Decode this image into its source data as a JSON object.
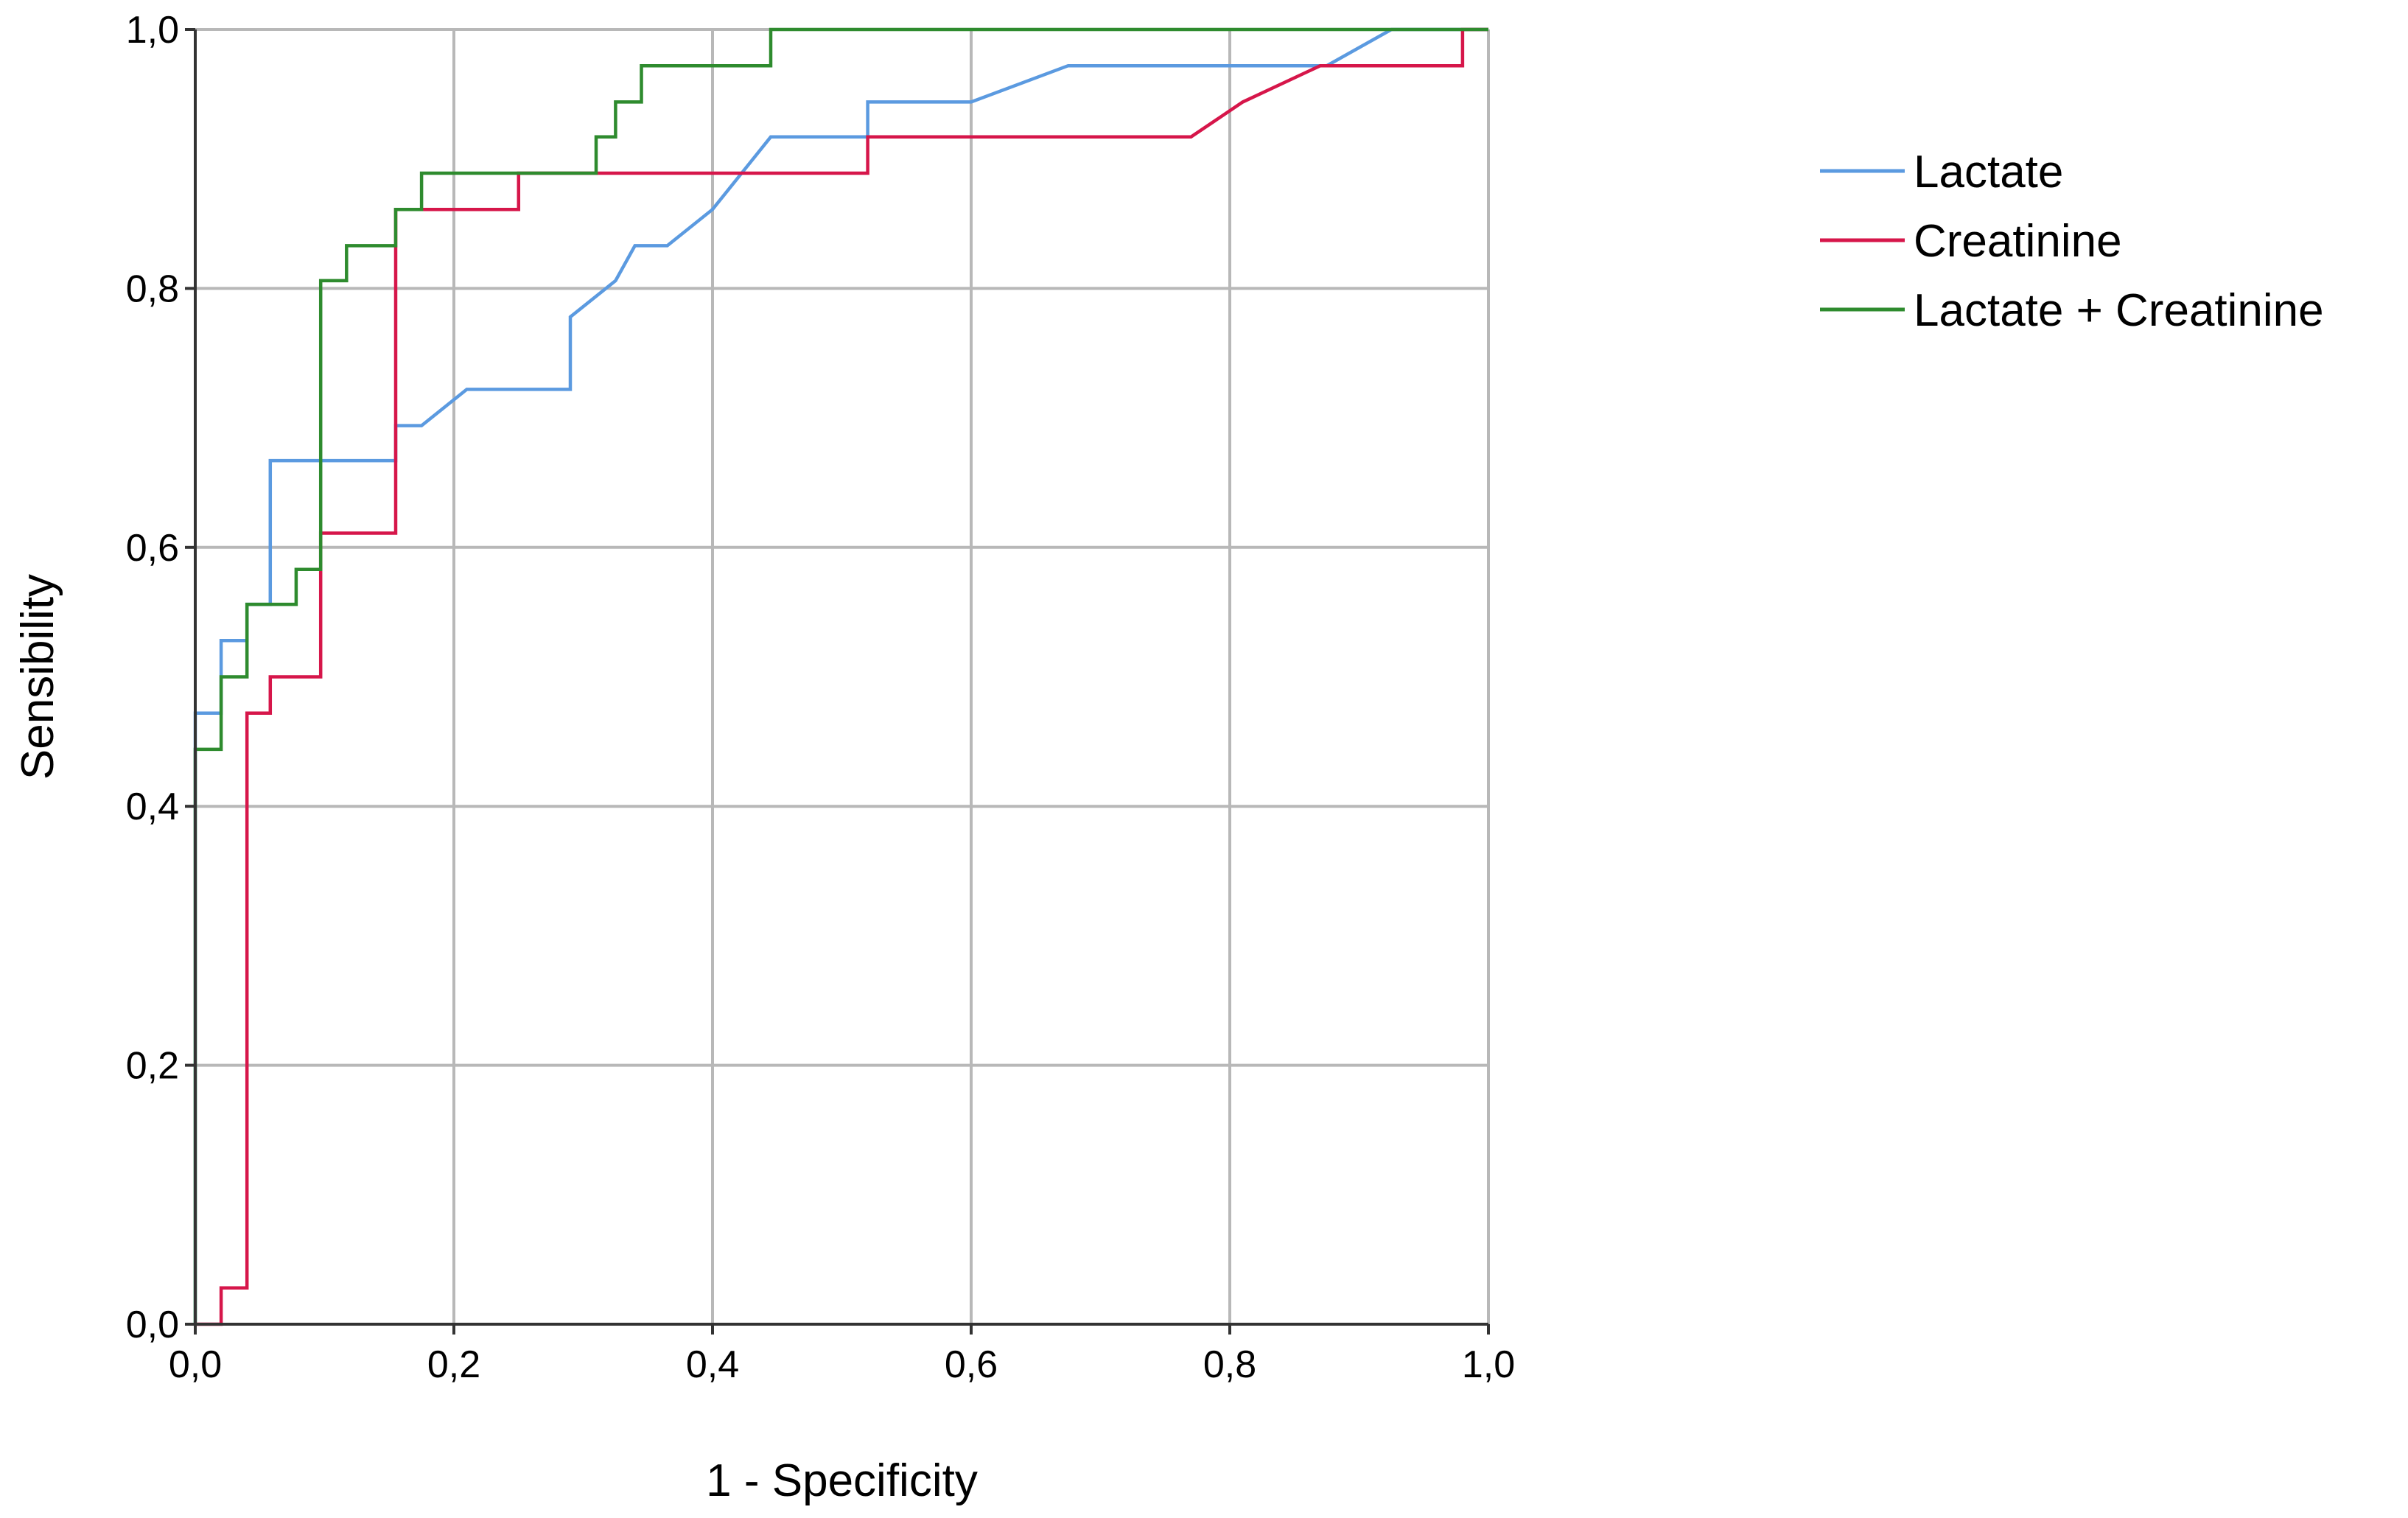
{
  "chart_data": {
    "type": "line",
    "title": "",
    "xlabel": "1 - Specificity",
    "ylabel": "Sensibility",
    "xlim": [
      0,
      1
    ],
    "ylim": [
      0,
      1
    ],
    "x_ticks": [
      "0,0",
      "0,2",
      "0,4",
      "0,6",
      "0,8",
      "1,0"
    ],
    "y_ticks": [
      "0,0",
      "0,2",
      "0,4",
      "0,6",
      "0,8",
      "1,0"
    ],
    "grid": true,
    "legend_position": "right",
    "series": [
      {
        "name": "Lactate",
        "color": "#5b9ae0",
        "points": [
          [
            0,
            0
          ],
          [
            0,
            0.472
          ],
          [
            0.02,
            0.472
          ],
          [
            0.02,
            0.528
          ],
          [
            0.04,
            0.528
          ],
          [
            0.04,
            0.556
          ],
          [
            0.058,
            0.556
          ],
          [
            0.058,
            0.667
          ],
          [
            0.155,
            0.667
          ],
          [
            0.155,
            0.694
          ],
          [
            0.175,
            0.694
          ],
          [
            0.21,
            0.722
          ],
          [
            0.29,
            0.722
          ],
          [
            0.29,
            0.778
          ],
          [
            0.325,
            0.806
          ],
          [
            0.34,
            0.833
          ],
          [
            0.365,
            0.833
          ],
          [
            0.4,
            0.861
          ],
          [
            0.445,
            0.917
          ],
          [
            0.52,
            0.917
          ],
          [
            0.52,
            0.944
          ],
          [
            0.6,
            0.944
          ],
          [
            0.675,
            0.972
          ],
          [
            0.875,
            0.972
          ],
          [
            0.925,
            1.0
          ],
          [
            1.0,
            1.0
          ]
        ]
      },
      {
        "name": "Creatinine",
        "color": "#d6164a",
        "points": [
          [
            0,
            0
          ],
          [
            0.02,
            0
          ],
          [
            0.02,
            0.028
          ],
          [
            0.04,
            0.028
          ],
          [
            0.04,
            0.472
          ],
          [
            0.058,
            0.472
          ],
          [
            0.058,
            0.5
          ],
          [
            0.097,
            0.5
          ],
          [
            0.097,
            0.611
          ],
          [
            0.155,
            0.611
          ],
          [
            0.155,
            0.861
          ],
          [
            0.25,
            0.861
          ],
          [
            0.25,
            0.889
          ],
          [
            0.52,
            0.889
          ],
          [
            0.52,
            0.917
          ],
          [
            0.77,
            0.917
          ],
          [
            0.81,
            0.944
          ],
          [
            0.87,
            0.972
          ],
          [
            0.98,
            0.972
          ],
          [
            0.98,
            1.0
          ],
          [
            1.0,
            1.0
          ]
        ]
      },
      {
        "name": "Lactate + Creatinine",
        "color": "#2e8b2e",
        "points": [
          [
            0,
            0
          ],
          [
            0,
            0.444
          ],
          [
            0.02,
            0.444
          ],
          [
            0.02,
            0.5
          ],
          [
            0.04,
            0.5
          ],
          [
            0.04,
            0.556
          ],
          [
            0.078,
            0.556
          ],
          [
            0.078,
            0.583
          ],
          [
            0.097,
            0.583
          ],
          [
            0.097,
            0.806
          ],
          [
            0.117,
            0.806
          ],
          [
            0.117,
            0.833
          ],
          [
            0.155,
            0.833
          ],
          [
            0.155,
            0.861
          ],
          [
            0.175,
            0.861
          ],
          [
            0.175,
            0.889
          ],
          [
            0.31,
            0.889
          ],
          [
            0.31,
            0.917
          ],
          [
            0.325,
            0.917
          ],
          [
            0.325,
            0.944
          ],
          [
            0.345,
            0.944
          ],
          [
            0.345,
            0.972
          ],
          [
            0.445,
            0.972
          ],
          [
            0.445,
            1.0
          ],
          [
            1.0,
            1.0
          ]
        ]
      }
    ]
  }
}
